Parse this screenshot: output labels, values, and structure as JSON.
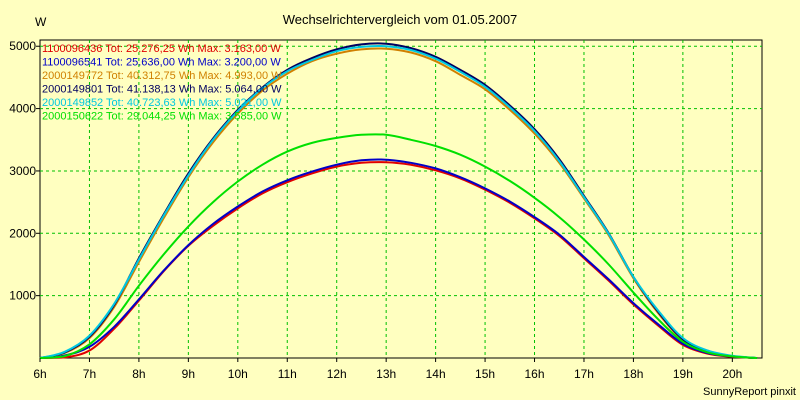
{
  "chart_data": {
    "type": "line",
    "title": "Wechselrichtervergleich vom 01.05.2007",
    "ylabel": "W",
    "footer": "SunnyReport pinxit",
    "x_range": [
      6,
      20.6
    ],
    "ylim": [
      0,
      5100
    ],
    "x_ticks": [
      {
        "v": 6,
        "label": "6h"
      },
      {
        "v": 7,
        "label": "7h"
      },
      {
        "v": 8,
        "label": "8h"
      },
      {
        "v": 9,
        "label": "9h"
      },
      {
        "v": 10,
        "label": "10h"
      },
      {
        "v": 11,
        "label": "11h"
      },
      {
        "v": 12,
        "label": "12h"
      },
      {
        "v": 13,
        "label": "13h"
      },
      {
        "v": 14,
        "label": "14h"
      },
      {
        "v": 15,
        "label": "15h"
      },
      {
        "v": 16,
        "label": "16h"
      },
      {
        "v": 17,
        "label": "17h"
      },
      {
        "v": 18,
        "label": "18h"
      },
      {
        "v": 19,
        "label": "19h"
      },
      {
        "v": 20,
        "label": "20h"
      }
    ],
    "y_ticks": [
      {
        "v": 1000,
        "label": "1000"
      },
      {
        "v": 2000,
        "label": "2000"
      },
      {
        "v": 3000,
        "label": "3000"
      },
      {
        "v": 4000,
        "label": "4000"
      },
      {
        "v": 5000,
        "label": "5000"
      }
    ],
    "grid": true,
    "legend_position": "top-left",
    "x": [
      6.0,
      6.5,
      7.0,
      7.5,
      8.0,
      8.5,
      9.0,
      9.5,
      10.0,
      10.5,
      11.0,
      11.5,
      12.0,
      12.5,
      13.0,
      13.5,
      14.0,
      14.5,
      15.0,
      15.5,
      16.0,
      16.5,
      17.0,
      17.5,
      18.0,
      18.5,
      19.0,
      19.5,
      20.0,
      20.5
    ],
    "series": [
      {
        "name": "1100096436",
        "legend": "1100096436 Tot: 25.276,25 Wh Max: 3.163,00 W",
        "color": "#e00000",
        "values": [
          0,
          10,
          120,
          470,
          920,
          1390,
          1800,
          2120,
          2400,
          2640,
          2820,
          2960,
          3070,
          3130,
          3140,
          3100,
          3010,
          2880,
          2700,
          2490,
          2240,
          1960,
          1600,
          1240,
          860,
          520,
          210,
          70,
          20,
          0
        ]
      },
      {
        "name": "1100096541",
        "legend": "1100096541 Tot: 25.636,00 Wh Max: 3.200,00 W",
        "color": "#0000c8",
        "values": [
          0,
          40,
          180,
          500,
          940,
          1400,
          1810,
          2150,
          2430,
          2670,
          2850,
          2990,
          3100,
          3170,
          3180,
          3130,
          3040,
          2900,
          2720,
          2510,
          2260,
          1980,
          1620,
          1260,
          880,
          540,
          230,
          80,
          25,
          0
        ]
      },
      {
        "name": "2000149772",
        "legend": "2000149772 Tot: 40.312,75 Wh Max: 4.993,00 W",
        "color": "#d08000",
        "values": [
          0,
          80,
          320,
          820,
          1540,
          2240,
          2900,
          3460,
          3920,
          4290,
          4560,
          4760,
          4880,
          4950,
          4960,
          4900,
          4760,
          4540,
          4310,
          3980,
          3600,
          3130,
          2560,
          1970,
          1280,
          720,
          290,
          110,
          30,
          0
        ]
      },
      {
        "name": "2000149801",
        "legend": "2000149801 Tot: 41.138,13 Wh Max: 5.064,00 W",
        "color": "#000060",
        "values": [
          0,
          90,
          340,
          850,
          1600,
          2300,
          2960,
          3520,
          3980,
          4340,
          4620,
          4810,
          4950,
          5030,
          5040,
          4970,
          4830,
          4620,
          4380,
          4050,
          3670,
          3190,
          2600,
          2000,
          1300,
          740,
          300,
          110,
          30,
          0
        ]
      },
      {
        "name": "2000149852",
        "legend": "2000149852 Tot: 40.723,63 Wh Max: 5.021,00 W",
        "color": "#00c8e0",
        "values": [
          0,
          100,
          360,
          870,
          1580,
          2280,
          2930,
          3500,
          3960,
          4330,
          4600,
          4780,
          4920,
          4990,
          5000,
          4940,
          4800,
          4590,
          4350,
          4020,
          3640,
          3160,
          2580,
          1990,
          1300,
          760,
          320,
          120,
          35,
          0
        ]
      },
      {
        "name": "2000150622",
        "legend": "2000150622 Tot: 29.044,25 Wh Max: 3.585,00 W",
        "color": "#00e000",
        "values": [
          0,
          30,
          220,
          620,
          1160,
          1660,
          2110,
          2500,
          2830,
          3100,
          3310,
          3450,
          3530,
          3580,
          3580,
          3500,
          3400,
          3260,
          3070,
          2840,
          2570,
          2260,
          1900,
          1500,
          1050,
          620,
          260,
          90,
          25,
          0
        ]
      }
    ]
  }
}
